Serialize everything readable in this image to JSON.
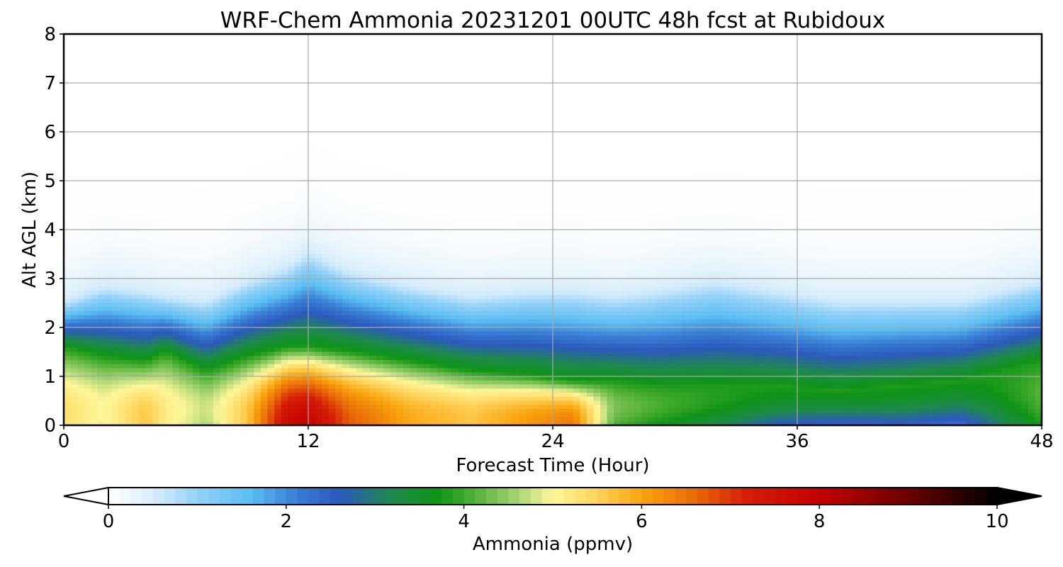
{
  "chart_data": {
    "type": "heatmap",
    "title": "WRF-Chem Ammonia  20231201 00UTC 48h fcst at Rubidoux",
    "xlabel": "Forecast Time (Hour)",
    "ylabel": "Alt AGL (km)",
    "x_ticks": [
      0,
      12,
      24,
      36,
      48
    ],
    "y_ticks": [
      0,
      1,
      2,
      3,
      4,
      5,
      6,
      7,
      8
    ],
    "xlim": [
      0,
      48
    ],
    "ylim": [
      0,
      8
    ],
    "grid": true,
    "colorbar": {
      "label": "Ammonia  (ppmv)",
      "ticks": [
        0,
        2,
        4,
        6,
        8,
        10
      ],
      "range": [
        0,
        10
      ],
      "extend": "both"
    },
    "field_description": "contour levels of ammonia concentration vs forecast hour and altitude",
    "profiles": {
      "hours": [
        0,
        2,
        4,
        5,
        7,
        9,
        11,
        12,
        14,
        17,
        20,
        23,
        25,
        27,
        29,
        32,
        35,
        38,
        41,
        44,
        47,
        48
      ],
      "surface_ppmv": [
        5.3,
        4.9,
        5.6,
        5.1,
        4.6,
        5.6,
        7.7,
        7.9,
        6.7,
        5.9,
        5.6,
        6.1,
        6.4,
        4.1,
        3.7,
        3.2,
        2.6,
        2.4,
        2.5,
        2.3,
        3.4,
        3.8
      ],
      "top_altitude_km": [
        1.6,
        1.4,
        1.3,
        1.5,
        1.1,
        1.4,
        1.6,
        1.6,
        1.5,
        1.3,
        1.1,
        1.0,
        0.9,
        0.9,
        0.8,
        0.8,
        0.8,
        0.7,
        0.8,
        0.9,
        1.2,
        1.3
      ],
      "plume_altitude_km": [
        2.5,
        2.8,
        2.7,
        2.6,
        2.5,
        2.9,
        3.2,
        3.5,
        3.1,
        2.8,
        2.6,
        2.7,
        2.7,
        2.6,
        2.7,
        2.9,
        2.7,
        2.5,
        2.5,
        2.5,
        2.8,
        2.9
      ]
    },
    "colormap": [
      [
        0,
        "#ffffff"
      ],
      [
        0.5,
        "#d9eefb"
      ],
      [
        1,
        "#92d1f8"
      ],
      [
        1.6,
        "#5bbef2"
      ],
      [
        2.1,
        "#3a7fd6"
      ],
      [
        2.6,
        "#2b59bd"
      ],
      [
        3.2,
        "#1e8a4c"
      ],
      [
        3.7,
        "#0f9417"
      ],
      [
        4.0,
        "#3da82a"
      ],
      [
        4.6,
        "#a7d473"
      ],
      [
        5.0,
        "#fff79a"
      ],
      [
        5.5,
        "#ffd35a"
      ],
      [
        6.0,
        "#f9a40e"
      ],
      [
        6.6,
        "#e96a08"
      ],
      [
        7.2,
        "#d41c08"
      ],
      [
        8.0,
        "#c50000"
      ],
      [
        9.0,
        "#6a0000"
      ],
      [
        10,
        "#000000"
      ]
    ]
  }
}
